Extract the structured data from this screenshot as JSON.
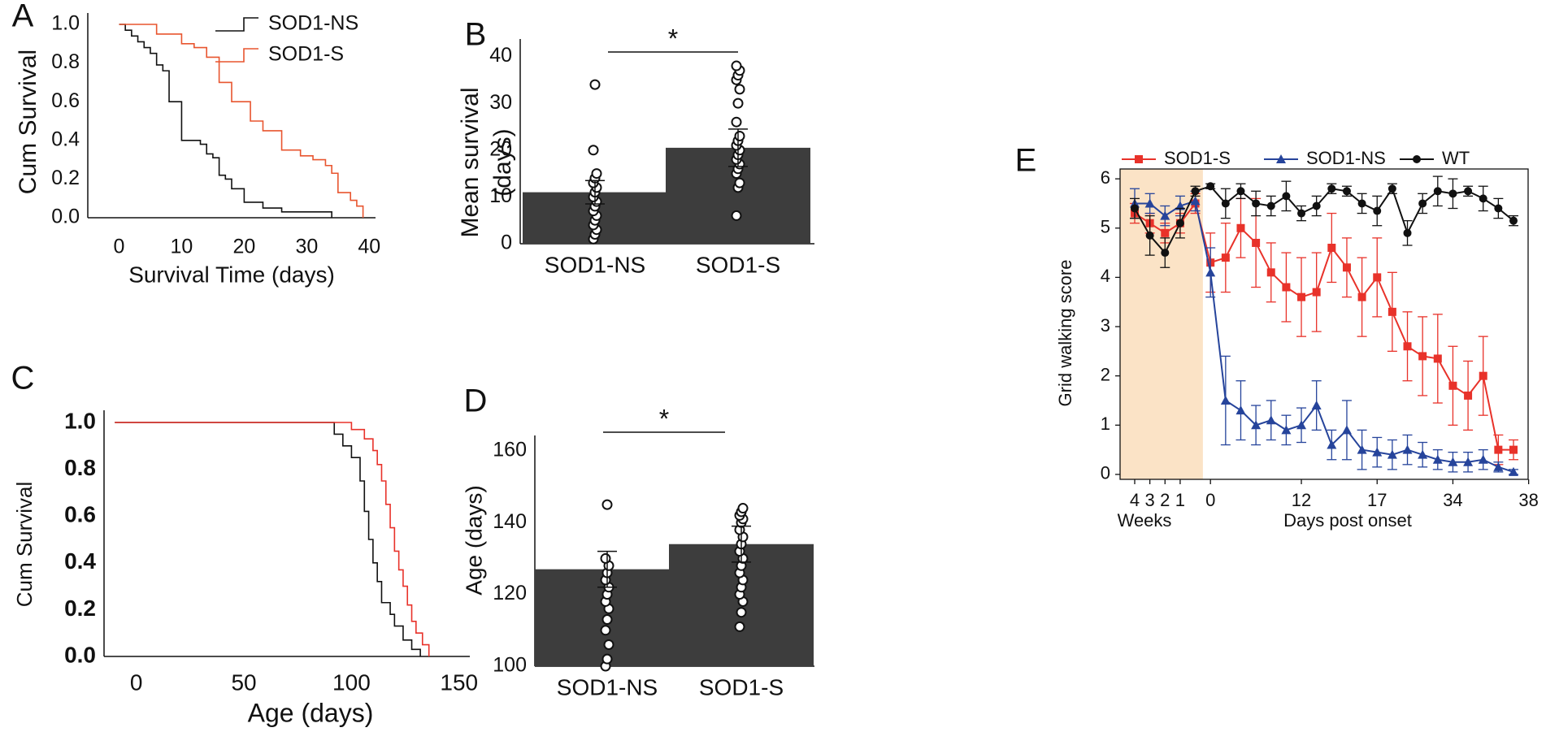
{
  "colors": {
    "red": "#e8322a",
    "orange": "#e8552f",
    "blue": "#26449b",
    "black": "#111111",
    "bar": "#3d3d3d",
    "shade": "#fbe3c6"
  },
  "chart_data": [
    {
      "id": "A",
      "type": "line",
      "panel_label": "A",
      "xlabel": "Survival Time (days)",
      "ylabel": "Cum Survival",
      "xlim": [
        -5,
        41
      ],
      "ylim": [
        0,
        1
      ],
      "xticks": [
        0,
        10,
        20,
        30,
        40
      ],
      "xtick_labels": [
        "0",
        "10",
        "20",
        "30",
        "40"
      ],
      "yticks": [
        0,
        0.2,
        0.4,
        0.6,
        0.8,
        1.0
      ],
      "ytick_labels": [
        "0.0",
        "0.2",
        "0.4",
        "0.6",
        "0.8",
        "1.0"
      ],
      "legend": [
        "SOD1-NS",
        "SOD1-S"
      ],
      "series": [
        {
          "name": "SOD1-NS",
          "color": "#111111",
          "x": [
            0,
            1,
            2,
            3,
            4,
            5,
            6,
            7,
            8,
            10,
            12,
            13,
            14,
            15,
            16,
            17,
            18,
            20,
            23,
            26,
            29,
            34
          ],
          "y": [
            1.0,
            0.97,
            0.94,
            0.91,
            0.88,
            0.85,
            0.79,
            0.76,
            0.6,
            0.4,
            0.4,
            0.38,
            0.33,
            0.31,
            0.22,
            0.2,
            0.15,
            0.08,
            0.05,
            0.03,
            0.03,
            0.0
          ]
        },
        {
          "name": "SOD1-S",
          "color": "#e8552f",
          "x": [
            0,
            6,
            10,
            12,
            14,
            16,
            18,
            21,
            23,
            26,
            29,
            31,
            33,
            34,
            35,
            37,
            38,
            39
          ],
          "y": [
            1.0,
            0.95,
            0.9,
            0.88,
            0.83,
            0.7,
            0.6,
            0.5,
            0.45,
            0.35,
            0.32,
            0.3,
            0.27,
            0.23,
            0.13,
            0.09,
            0.06,
            0.0
          ]
        }
      ]
    },
    {
      "id": "B",
      "type": "bar",
      "panel_label": "B",
      "categories": [
        "SOD1-NS",
        "SOD1-S"
      ],
      "values": [
        11,
        20.5
      ],
      "errors": [
        2.5,
        4
      ],
      "ylabel": "Mean survival (days)",
      "ylabel_lines": [
        "Mean survival",
        "(days)"
      ],
      "ylim": [
        0,
        42
      ],
      "yticks": [
        0,
        10,
        20,
        30,
        40
      ],
      "ytick_labels": [
        "0",
        "10",
        "20",
        "30",
        "40"
      ],
      "significance": "*",
      "points": [
        [
          1,
          2,
          3,
          4,
          5,
          6,
          7,
          8,
          9,
          10,
          11,
          12,
          13,
          14,
          15,
          20,
          34
        ],
        [
          6,
          12,
          13,
          15,
          16,
          17,
          18,
          19,
          20,
          21,
          22,
          23,
          26,
          30,
          33,
          35,
          36,
          37,
          38
        ]
      ]
    },
    {
      "id": "C",
      "type": "line",
      "panel_label": "C",
      "xlabel": "Age (days)",
      "ylabel": "Cum Survival",
      "xlim": [
        -15,
        155
      ],
      "ylim": [
        0,
        1
      ],
      "xticks": [
        0,
        50,
        100,
        150
      ],
      "xtick_labels": [
        "0",
        "50",
        "100",
        "150"
      ],
      "yticks": [
        0,
        0.2,
        0.4,
        0.6,
        0.8,
        1.0
      ],
      "ytick_labels": [
        "0.0",
        "0.2",
        "0.4",
        "0.6",
        "0.8",
        "1.0"
      ],
      "series": [
        {
          "name": "SOD1-NS",
          "color": "#111111",
          "x": [
            -10,
            90,
            92,
            96,
            100,
            104,
            106,
            108,
            110,
            112,
            114,
            118,
            120,
            124,
            128,
            132
          ],
          "y": [
            1.0,
            1.0,
            0.95,
            0.9,
            0.85,
            0.75,
            0.62,
            0.5,
            0.4,
            0.32,
            0.23,
            0.18,
            0.13,
            0.07,
            0.03,
            0.0
          ]
        },
        {
          "name": "SOD1-S",
          "color": "#e8322a",
          "x": [
            -10,
            95,
            100,
            106,
            110,
            112,
            114,
            116,
            118,
            120,
            122,
            124,
            126,
            128,
            130,
            133,
            136
          ],
          "y": [
            1.0,
            1.0,
            0.97,
            0.93,
            0.88,
            0.82,
            0.75,
            0.65,
            0.55,
            0.45,
            0.37,
            0.3,
            0.22,
            0.15,
            0.1,
            0.05,
            0.0
          ]
        }
      ]
    },
    {
      "id": "D",
      "type": "bar",
      "panel_label": "D",
      "categories": [
        "SOD1-NS",
        "SOD1-S"
      ],
      "values": [
        127,
        134
      ],
      "errors": [
        5,
        5
      ],
      "ylabel": "Age (days)",
      "ylim": [
        100,
        162
      ],
      "yticks": [
        100,
        120,
        140,
        160
      ],
      "ytick_labels": [
        "100",
        "120",
        "140",
        "160"
      ],
      "significance": "*",
      "points": [
        [
          100,
          102,
          106,
          110,
          113,
          116,
          118,
          120,
          122,
          124,
          126,
          128,
          130,
          145
        ],
        [
          111,
          115,
          118,
          120,
          122,
          124,
          126,
          128,
          130,
          132,
          134,
          136,
          138,
          140,
          141,
          142,
          143,
          144
        ]
      ]
    },
    {
      "id": "E",
      "type": "line",
      "panel_label": "E",
      "ylabel": "Grid walking score",
      "ylim": [
        -0.1,
        6.2
      ],
      "yticks": [
        0,
        1,
        2,
        3,
        4,
        5,
        6
      ],
      "ytick_labels": [
        "0",
        "1",
        "2",
        "3",
        "4",
        "5",
        "6"
      ],
      "xtick_labels": [
        "4",
        "3",
        "2",
        "1",
        "0",
        "12",
        "17",
        "34",
        "38"
      ],
      "xtick_positions": [
        0,
        1,
        2,
        3,
        5,
        11,
        16,
        21,
        26
      ],
      "xgroup_labels": [
        "Weeks",
        "Days post onset"
      ],
      "shaded_region": [
        0,
        4.5
      ],
      "legend": [
        "SOD1-S",
        "SOD1-NS",
        "WT"
      ],
      "series": [
        {
          "name": "SOD1-S",
          "color": "#e8322a",
          "marker": "square",
          "y": [
            5.3,
            5.1,
            4.9,
            5.1,
            5.5,
            4.3,
            4.4,
            5.0,
            4.7,
            4.1,
            3.8,
            3.6,
            3.7,
            4.6,
            4.2,
            3.6,
            4.0,
            3.3,
            2.6,
            2.4,
            2.35,
            1.8,
            1.6,
            2.0,
            0.5,
            0.5
          ],
          "err": [
            0.2,
            0.2,
            0.2,
            0.2,
            0.2,
            0.6,
            0.7,
            0.6,
            0.9,
            0.6,
            0.7,
            0.8,
            0.8,
            0.7,
            0.6,
            0.8,
            0.8,
            0.8,
            0.7,
            0.8,
            0.9,
            0.8,
            0.7,
            0.8,
            0.3,
            0.2
          ]
        },
        {
          "name": "SOD1-NS",
          "color": "#26449b",
          "marker": "triangle",
          "y": [
            5.5,
            5.5,
            5.25,
            5.45,
            5.55,
            4.1,
            1.5,
            1.3,
            1.0,
            1.1,
            0.9,
            1.0,
            1.4,
            0.6,
            0.9,
            0.5,
            0.45,
            0.4,
            0.5,
            0.4,
            0.3,
            0.25,
            0.25,
            0.3,
            0.15,
            0.05
          ],
          "err": [
            0.3,
            0.2,
            0.2,
            0.2,
            0.2,
            0.5,
            0.9,
            0.6,
            0.4,
            0.4,
            0.3,
            0.35,
            0.5,
            0.3,
            0.6,
            0.4,
            0.3,
            0.3,
            0.3,
            0.25,
            0.2,
            0.2,
            0.2,
            0.2,
            0.1,
            0.05
          ]
        },
        {
          "name": "WT",
          "color": "#111111",
          "marker": "circle",
          "y": [
            5.4,
            4.85,
            4.5,
            5.1,
            5.75,
            5.85,
            5.5,
            5.75,
            5.5,
            5.45,
            5.65,
            5.3,
            5.45,
            5.8,
            5.75,
            5.5,
            5.35,
            5.8,
            4.9,
            5.5,
            5.75,
            5.7,
            5.75,
            5.6,
            5.4,
            5.15
          ],
          "err": [
            0.2,
            0.4,
            0.3,
            0.3,
            0.1,
            0.05,
            0.3,
            0.15,
            0.25,
            0.2,
            0.3,
            0.15,
            0.2,
            0.1,
            0.1,
            0.2,
            0.3,
            0.1,
            0.25,
            0.2,
            0.3,
            0.3,
            0.1,
            0.25,
            0.2,
            0.1
          ]
        }
      ]
    }
  ]
}
